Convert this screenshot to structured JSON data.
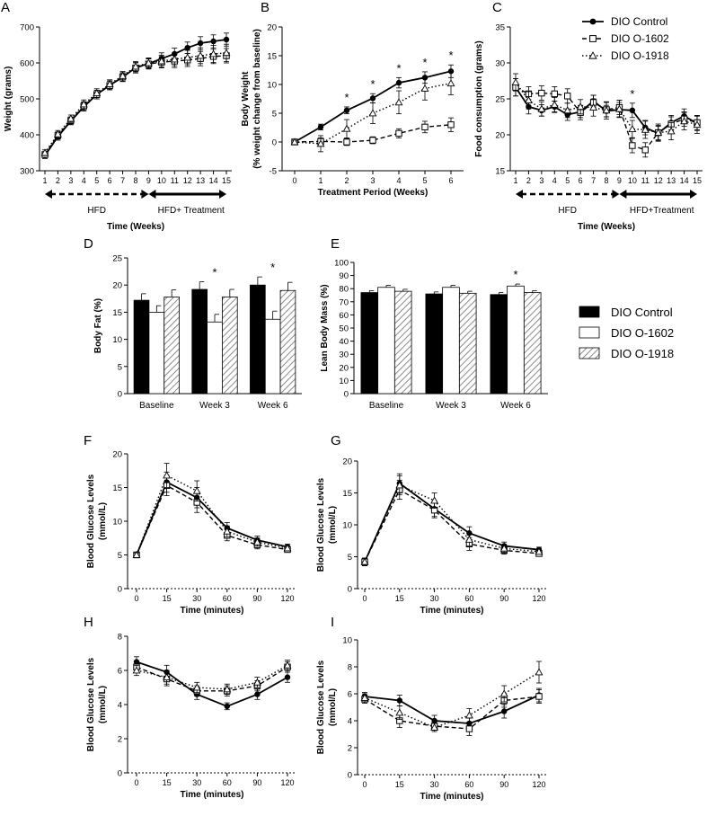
{
  "colors": {
    "ink": "#000000",
    "bg": "#ffffff",
    "hatch": "#9a9a9a"
  },
  "weeks": [
    "1",
    "2",
    "3",
    "4",
    "5",
    "6",
    "7",
    "8",
    "9",
    "10",
    "11",
    "12",
    "13",
    "14",
    "15"
  ],
  "treatment_weeks": [
    "0",
    "1",
    "2",
    "3",
    "4",
    "5",
    "6"
  ],
  "minutes_gtt": [
    "0",
    "15",
    "30",
    "60",
    "90",
    "120"
  ],
  "legend_top": [
    "DIO Control",
    "DIO O-1602",
    "DIO O-1918"
  ],
  "legend_bar": [
    "DIO Control",
    "DIO O-1602",
    "DIO O-1918"
  ],
  "chart_data": [
    {
      "id": "A",
      "type": "line",
      "panel_label": "A",
      "xlabel": "Time (Weeks)",
      "ylabel": "Weight (grams)",
      "ylim": [
        300,
        700
      ],
      "yticks": [
        "300",
        "400",
        "500",
        "600",
        "700"
      ],
      "phase_labels": [
        "HFD",
        "HFD+ Treatment"
      ],
      "series": [
        {
          "name": "DIO Control",
          "values": [
            342,
            395,
            438,
            478,
            512,
            538,
            560,
            587,
            598,
            612,
            625,
            642,
            655,
            660,
            665
          ],
          "err": [
            8,
            10,
            10,
            12,
            12,
            12,
            12,
            14,
            14,
            16,
            16,
            16,
            18,
            18,
            18
          ]
        },
        {
          "name": "DIO O-1602",
          "values": [
            345,
            398,
            440,
            480,
            512,
            537,
            561,
            586,
            597,
            602,
            605,
            608,
            612,
            618,
            620
          ],
          "err": [
            8,
            10,
            10,
            12,
            12,
            12,
            12,
            14,
            14,
            16,
            18,
            18,
            20,
            20,
            20
          ]
        },
        {
          "name": "DIO O-1918",
          "values": [
            350,
            402,
            445,
            485,
            516,
            541,
            564,
            590,
            600,
            605,
            610,
            615,
            620,
            625,
            628
          ],
          "err": [
            8,
            10,
            10,
            12,
            12,
            12,
            12,
            14,
            14,
            16,
            18,
            20,
            22,
            24,
            24
          ]
        }
      ]
    },
    {
      "id": "B",
      "type": "line",
      "panel_label": "B",
      "xlabel": "Treatment Period (Weeks)",
      "ylabel": "Body Weight",
      "ylabel2": "(% weight change from baseline)",
      "ylim": [
        -5,
        20
      ],
      "yticks": [
        "-5",
        "0",
        "5",
        "10",
        "15",
        "20"
      ],
      "sig_weeks": [
        "2",
        "3",
        "4",
        "5",
        "6"
      ],
      "sig_mark": "*",
      "series": [
        {
          "name": "DIO Control",
          "values": [
            0,
            2.6,
            5.5,
            7.6,
            10.3,
            11.2,
            12.3
          ],
          "err": [
            0.3,
            0.5,
            0.6,
            0.8,
            0.9,
            1.0,
            1.1
          ]
        },
        {
          "name": "DIO O-1602",
          "values": [
            0,
            0.1,
            0.0,
            0.3,
            1.5,
            2.6,
            3.0
          ],
          "err": [
            0.3,
            0.6,
            0.6,
            0.6,
            0.8,
            1.0,
            1.2
          ]
        },
        {
          "name": "DIO O-1918",
          "values": [
            0,
            -0.3,
            2.3,
            5.0,
            6.9,
            9.3,
            10.2
          ],
          "err": [
            0.3,
            1.4,
            1.6,
            1.8,
            2.0,
            2.0,
            2.0
          ]
        }
      ]
    },
    {
      "id": "C",
      "type": "line",
      "panel_label": "C",
      "xlabel": "Time (Weeks)",
      "ylabel": "Food consumption (grams)",
      "ylim": [
        15,
        35
      ],
      "yticks": [
        "15",
        "20",
        "25",
        "30",
        "35"
      ],
      "phase_labels": [
        "HFD",
        "HFD+Treatment"
      ],
      "sig_weeks": [
        "10"
      ],
      "sig_mark": "*",
      "series": [
        {
          "name": "DIO Control",
          "values": [
            26.6,
            23.9,
            23.4,
            23.9,
            22.8,
            23.2,
            24.7,
            23.3,
            23.5,
            23.4,
            21.0,
            20.2,
            21.7,
            22.6,
            21.6
          ],
          "err": [
            1.2,
            1.0,
            0.8,
            0.8,
            0.8,
            0.8,
            0.8,
            0.8,
            1.0,
            1.0,
            1.0,
            1.0,
            1.0,
            1.0,
            1.0
          ]
        },
        {
          "name": "DIO O-1602",
          "values": [
            26.6,
            25.7,
            25.8,
            25.7,
            25.4,
            23.1,
            24.5,
            23.5,
            23.8,
            18.5,
            17.9,
            20.3,
            21.5,
            22.2,
            21.7
          ],
          "err": [
            1.2,
            1.0,
            1.0,
            1.0,
            1.0,
            1.0,
            1.0,
            1.0,
            1.0,
            1.0,
            1.0,
            1.0,
            1.0,
            1.0,
            1.0
          ]
        },
        {
          "name": "DIO O-1918",
          "values": [
            27.3,
            24.8,
            23.6,
            24.2,
            23.4,
            23.9,
            23.8,
            23.4,
            23.6,
            20.8,
            20.7,
            20.3,
            20.5,
            21.9,
            21.4
          ],
          "err": [
            1.2,
            1.2,
            1.0,
            1.0,
            1.0,
            1.0,
            1.2,
            1.2,
            1.2,
            1.2,
            1.2,
            1.2,
            1.2,
            1.2,
            1.2
          ]
        }
      ]
    },
    {
      "id": "D",
      "type": "bar",
      "panel_label": "D",
      "categories": [
        "Baseline",
        "Week 3",
        "Week 6"
      ],
      "ylabel": "Body Fat (%)",
      "ylim": [
        0,
        25
      ],
      "yticks": [
        "0",
        "5",
        "10",
        "15",
        "20",
        "25"
      ],
      "sig_categories": [
        "Week 3",
        "Week 6"
      ],
      "sig_mark": "*",
      "series": [
        {
          "name": "DIO Control",
          "values": [
            17.2,
            19.2,
            20.0
          ],
          "err": [
            1.2,
            1.4,
            1.5
          ]
        },
        {
          "name": "DIO O-1602",
          "values": [
            15.0,
            13.2,
            13.7
          ],
          "err": [
            1.2,
            1.4,
            1.5
          ]
        },
        {
          "name": "DIO O-1918",
          "values": [
            17.8,
            17.8,
            19.0
          ],
          "err": [
            1.3,
            1.4,
            1.5
          ]
        }
      ]
    },
    {
      "id": "E",
      "type": "bar",
      "panel_label": "E",
      "categories": [
        "Baseline",
        "Week 3",
        "Week 6"
      ],
      "ylabel": "Lean Body Mass (%)",
      "ylim": [
        0,
        100
      ],
      "yticks": [
        "0",
        "10",
        "20",
        "30",
        "40",
        "50",
        "60",
        "70",
        "80",
        "90",
        "100"
      ],
      "sig_categories": [
        "Week 6"
      ],
      "sig_mark": "*",
      "series": [
        {
          "name": "DIO Control",
          "values": [
            77,
            76,
            75.5
          ],
          "err": [
            1.5,
            1.5,
            1.5
          ]
        },
        {
          "name": "DIO O-1602",
          "values": [
            81,
            81,
            82
          ],
          "err": [
            1.5,
            1.5,
            1.5
          ]
        },
        {
          "name": "DIO O-1918",
          "values": [
            78,
            76.5,
            77
          ],
          "err": [
            1.5,
            1.5,
            1.5
          ]
        }
      ]
    },
    {
      "id": "F",
      "type": "line",
      "panel_label": "F",
      "xlabel": "Time (minutes)",
      "ylabel": "Blood Glucose Levels",
      "ylabel2": "(mmol/L)",
      "ylim": [
        0,
        20
      ],
      "yticks": [
        "0",
        "5",
        "10",
        "15",
        "20"
      ],
      "series": [
        {
          "name": "DIO Control",
          "values": [
            5.0,
            15.8,
            13.5,
            9.0,
            7.2,
            6.2
          ],
          "err": [
            0.3,
            1.5,
            1.5,
            0.8,
            0.6,
            0.4
          ]
        },
        {
          "name": "DIO O-1602",
          "values": [
            5.0,
            15.3,
            12.8,
            7.9,
            6.5,
            5.8
          ],
          "err": [
            0.3,
            1.5,
            1.5,
            0.8,
            0.6,
            0.4
          ]
        },
        {
          "name": "DIO O-1918",
          "values": [
            5.0,
            16.8,
            14.5,
            8.5,
            6.9,
            6.0
          ],
          "err": [
            0.3,
            1.8,
            1.5,
            0.8,
            0.6,
            0.4
          ]
        }
      ]
    },
    {
      "id": "G",
      "type": "line",
      "panel_label": "G",
      "xlabel": "Time (minutes)",
      "ylabel": "Blood Glucose Levels",
      "ylabel2": "(mmol/L)",
      "ylim": [
        0,
        20
      ],
      "yticks": [
        "0",
        "5",
        "10",
        "15",
        "20"
      ],
      "series": [
        {
          "name": "DIO Control",
          "values": [
            4.2,
            16.5,
            12.5,
            8.7,
            6.7,
            6.1
          ],
          "err": [
            0.6,
            1.5,
            1.2,
            1.0,
            0.6,
            0.4
          ]
        },
        {
          "name": "DIO O-1602",
          "values": [
            4.2,
            15.5,
            12.3,
            7.0,
            6.0,
            5.5
          ],
          "err": [
            0.6,
            1.5,
            1.2,
            1.0,
            0.6,
            0.4
          ]
        },
        {
          "name": "DIO O-1918",
          "values": [
            4.2,
            16.2,
            13.8,
            7.7,
            6.3,
            5.8
          ],
          "err": [
            0.6,
            1.5,
            1.2,
            1.0,
            0.6,
            0.4
          ]
        }
      ]
    },
    {
      "id": "H",
      "type": "line",
      "panel_label": "H",
      "xlabel": "Time (minutes)",
      "ylabel": "Blood Glucose Levels",
      "ylabel2": "(mmol/L)",
      "ylim": [
        0,
        8
      ],
      "yticks": [
        "0",
        "2",
        "4",
        "6",
        "8"
      ],
      "series": [
        {
          "name": "DIO Control",
          "values": [
            6.5,
            5.9,
            4.6,
            3.9,
            4.6,
            5.6
          ],
          "err": [
            0.3,
            0.4,
            0.3,
            0.2,
            0.3,
            0.3
          ]
        },
        {
          "name": "DIO O-1602",
          "values": [
            6.2,
            5.5,
            4.8,
            4.8,
            5.1,
            6.2
          ],
          "err": [
            0.3,
            0.4,
            0.3,
            0.3,
            0.3,
            0.3
          ]
        },
        {
          "name": "DIO O-1918",
          "values": [
            6.0,
            5.6,
            5.0,
            4.9,
            5.3,
            6.3
          ],
          "err": [
            0.3,
            0.4,
            0.3,
            0.3,
            0.3,
            0.3
          ]
        }
      ]
    },
    {
      "id": "I",
      "type": "line",
      "panel_label": "I",
      "xlabel": "Time (minutes)",
      "ylabel": "Blood Glucose Levels",
      "ylabel2": "(mmol/L)",
      "ylim": [
        0,
        10
      ],
      "yticks": [
        "0",
        "2",
        "4",
        "6",
        "8",
        "10"
      ],
      "series": [
        {
          "name": "DIO Control",
          "values": [
            5.8,
            5.5,
            4.0,
            3.8,
            4.7,
            5.9
          ],
          "err": [
            0.3,
            0.4,
            0.4,
            0.4,
            0.5,
            0.5
          ]
        },
        {
          "name": "DIO O-1602",
          "values": [
            5.6,
            4.0,
            3.6,
            3.4,
            5.5,
            5.8
          ],
          "err": [
            0.3,
            0.5,
            0.3,
            0.5,
            0.5,
            0.5
          ]
        },
        {
          "name": "DIO O-1918",
          "values": [
            5.7,
            4.6,
            3.5,
            4.4,
            6.0,
            7.6
          ],
          "err": [
            0.3,
            0.5,
            0.3,
            0.5,
            0.6,
            0.8
          ]
        }
      ]
    }
  ]
}
